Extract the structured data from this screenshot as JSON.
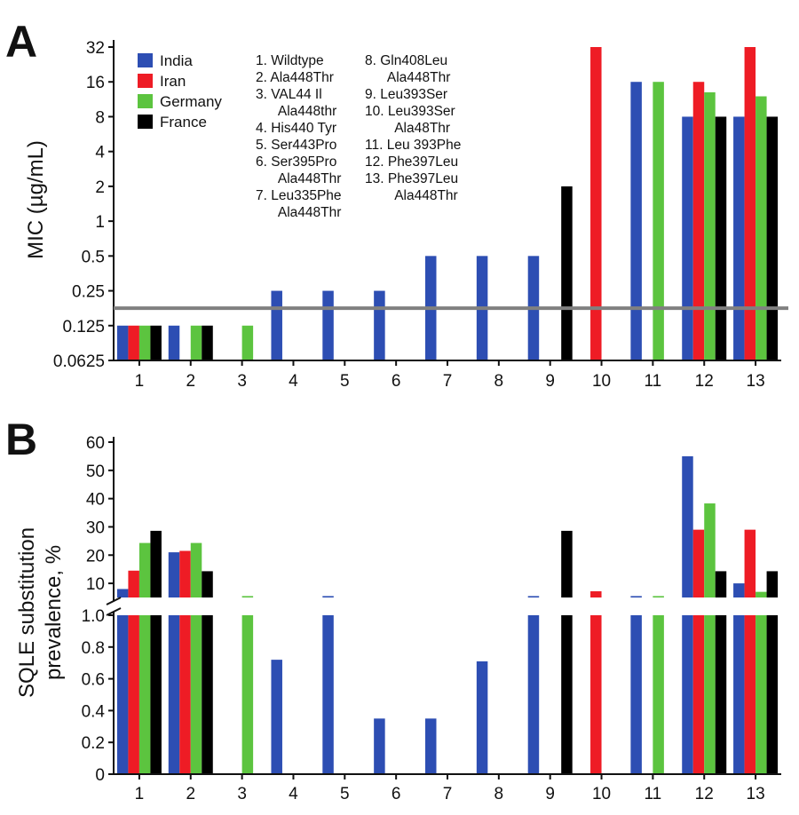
{
  "panels": {
    "a_label": "A",
    "b_label": "B"
  },
  "colors": {
    "India": "#2d4eb3",
    "Iran": "#ee1c25",
    "Germany": "#5cc43f",
    "France": "#000000",
    "threshold": "#808080"
  },
  "legend": [
    "India",
    "Iran",
    "Germany",
    "France"
  ],
  "substitutions": [
    [
      "1. Wildtype"
    ],
    [
      "2. Ala448Thr"
    ],
    [
      "3. VAL44 Il",
      "Ala448thr"
    ],
    [
      "4. His440 Tyr"
    ],
    [
      "5. Ser443Pro"
    ],
    [
      "6. Ser395Pro",
      "Ala448Thr"
    ],
    [
      "7. Leu335Phe",
      "Ala448Thr"
    ],
    [
      "8. Gln408Leu",
      "Ala448Thr"
    ],
    [
      "9. Leu393Ser"
    ],
    [
      "10. Leu393Ser",
      "Ala48Thr"
    ],
    [
      "11. Leu 393Phe"
    ],
    [
      "12. Phe397Leu"
    ],
    [
      "13. Phe397Leu",
      "Ala448Thr"
    ]
  ],
  "chart_data": [
    {
      "type": "bar",
      "panel": "A",
      "ylabel": "MIC (µg/mL)",
      "yscale": "log2",
      "ylim": [
        0.0625,
        32
      ],
      "yticks": [
        "0.0625",
        "0.125",
        "0.25",
        "0.5",
        "1",
        "2",
        "4",
        "8",
        "16",
        "32"
      ],
      "categories": [
        "1",
        "2",
        "3",
        "4",
        "5",
        "6",
        "7",
        "8",
        "9",
        "10",
        "11",
        "12",
        "13"
      ],
      "threshold": 0.177,
      "series": [
        {
          "name": "India",
          "values": [
            0.125,
            0.125,
            null,
            0.25,
            0.25,
            0.25,
            0.5,
            0.5,
            0.5,
            null,
            16,
            8,
            8
          ]
        },
        {
          "name": "Iran",
          "values": [
            0.125,
            null,
            null,
            null,
            null,
            null,
            null,
            null,
            null,
            32,
            null,
            16,
            32
          ]
        },
        {
          "name": "Germany",
          "values": [
            0.125,
            0.125,
            0.125,
            null,
            null,
            null,
            null,
            null,
            null,
            null,
            16,
            13,
            12
          ]
        },
        {
          "name": "France",
          "values": [
            0.125,
            0.125,
            null,
            null,
            null,
            null,
            null,
            null,
            2,
            null,
            null,
            8,
            8
          ]
        }
      ]
    },
    {
      "type": "bar",
      "panel": "B",
      "ylabel": "SQLE substitution prevalence, %",
      "yaxis": "broken",
      "lower_ylim": [
        0,
        1.0
      ],
      "upper_ylim": [
        5,
        60
      ],
      "lower_yticks": [
        "0",
        "0.2",
        "0.4",
        "0.6",
        "0.8",
        "1.0"
      ],
      "upper_yticks": [
        "10",
        "20",
        "30",
        "40",
        "50",
        "60"
      ],
      "categories": [
        "1",
        "2",
        "3",
        "4",
        "5",
        "6",
        "7",
        "8",
        "9",
        "10",
        "11",
        "12",
        "13"
      ],
      "series": [
        {
          "name": "India",
          "values": [
            8,
            21,
            null,
            0.72,
            1.5,
            0.35,
            0.35,
            0.71,
            2,
            null,
            1.5,
            55,
            10
          ]
        },
        {
          "name": "Iran",
          "values": [
            14.5,
            21.5,
            null,
            null,
            null,
            null,
            null,
            null,
            null,
            7.2,
            null,
            29,
            29
          ]
        },
        {
          "name": "Germany",
          "values": [
            24.3,
            24.3,
            3.5,
            null,
            null,
            null,
            null,
            null,
            null,
            null,
            3.3,
            38.3,
            7
          ]
        },
        {
          "name": "France",
          "values": [
            28.6,
            14.3,
            null,
            null,
            null,
            null,
            null,
            null,
            28.6,
            null,
            null,
            14.3,
            14.3
          ]
        }
      ]
    }
  ]
}
